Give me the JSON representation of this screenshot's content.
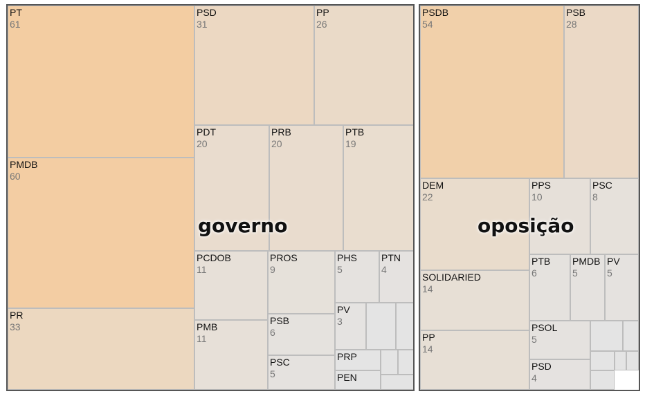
{
  "chart_data": {
    "type": "treemap",
    "groups": [
      {
        "name": "governo",
        "items": [
          {
            "name": "PT",
            "value": 61
          },
          {
            "name": "PMDB",
            "value": 60
          },
          {
            "name": "PR",
            "value": 33
          },
          {
            "name": "PSD",
            "value": 31
          },
          {
            "name": "PP",
            "value": 26
          },
          {
            "name": "PDT",
            "value": 20
          },
          {
            "name": "PRB",
            "value": 20
          },
          {
            "name": "PTB",
            "value": 19
          },
          {
            "name": "PCDOB",
            "value": 11
          },
          {
            "name": "PMB",
            "value": 11
          },
          {
            "name": "PROS",
            "value": 9
          },
          {
            "name": "PSB",
            "value": 6
          },
          {
            "name": "PSC",
            "value": 5
          },
          {
            "name": "PHS",
            "value": 5
          },
          {
            "name": "PTN",
            "value": 4
          },
          {
            "name": "PV",
            "value": 3
          },
          {
            "name": "PRP",
            "value": null
          },
          {
            "name": "PEN",
            "value": null
          }
        ]
      },
      {
        "name": "oposição",
        "items": [
          {
            "name": "PSDB",
            "value": 54
          },
          {
            "name": "PSB",
            "value": 28
          },
          {
            "name": "DEM",
            "value": 22
          },
          {
            "name": "PPS",
            "value": 10
          },
          {
            "name": "PSC",
            "value": 8
          },
          {
            "name": "SOLIDARIED",
            "value": 14
          },
          {
            "name": "PP",
            "value": 14
          },
          {
            "name": "PTB",
            "value": 6
          },
          {
            "name": "PMDB",
            "value": 5
          },
          {
            "name": "PV",
            "value": 5
          },
          {
            "name": "PSOL",
            "value": 5
          },
          {
            "name": "PSD",
            "value": 4
          }
        ]
      }
    ],
    "color_low": "#e4e4e4",
    "color_high": "#f3cda2"
  }
}
